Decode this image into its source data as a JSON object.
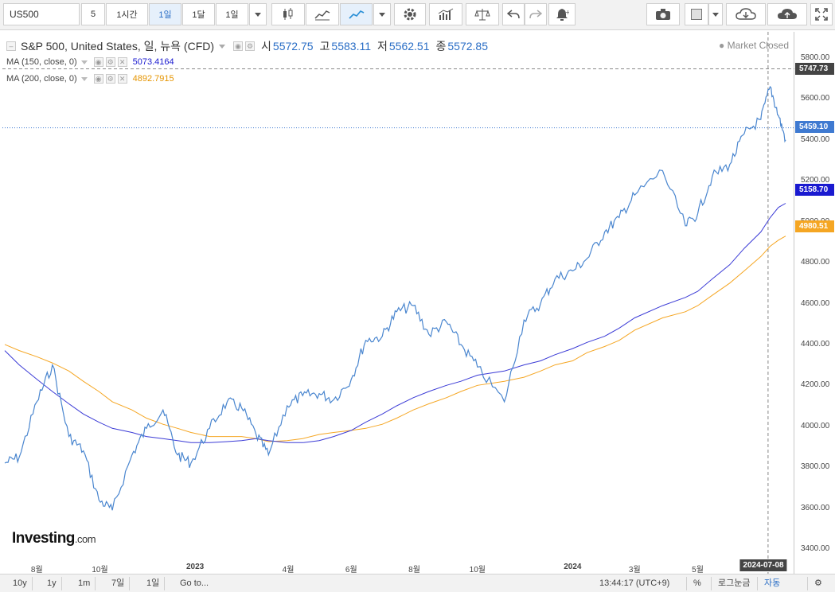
{
  "toolbar": {
    "symbol": "US500",
    "intervals": [
      "5",
      "1시간",
      "1일",
      "1달",
      "1일"
    ],
    "active_interval_index": 2,
    "icons": [
      "candlestick-icon",
      "bar-chart-icon",
      "line-chart-icon",
      "settings-icon",
      "indicators-icon",
      "compare-icon",
      "undo-icon",
      "redo-icon",
      "alert-icon",
      "camera-icon",
      "color-icon",
      "cloud-save-icon",
      "cloud-load-icon",
      "fullscreen-icon"
    ]
  },
  "legend": {
    "title": "S&P 500, United States, 일, 뉴욕 (CFD)",
    "open_label": "시",
    "open": "5572.75",
    "high_label": "고",
    "high": "5583.11",
    "low_label": "저",
    "low": "5562.51",
    "close_label": "종",
    "close": "5572.85",
    "market_status": "Market Closed",
    "ma150_label": "MA (150, close, 0)",
    "ma150_value": "5073.4164",
    "ma200_label": "MA (200, close, 0)",
    "ma200_value": "4892.7915"
  },
  "axis": {
    "price_ticks": [
      "5800.00",
      "5600.00",
      "5400.00",
      "5200.00",
      "5000.00",
      "4800.00",
      "4600.00",
      "4400.00",
      "4200.00",
      "4000.00",
      "3800.00",
      "3600.00",
      "3400.00"
    ],
    "time_ticks": [
      "8월",
      "10월",
      "2023",
      "4월",
      "6월",
      "8월",
      "10월",
      "2024",
      "3월",
      "5월"
    ],
    "crosshair_price": "5747.73",
    "crosshair_date": "2024-07-08",
    "last_price": "5459.10",
    "ma150_tag": "5158.70",
    "ma200_tag": "4980.51"
  },
  "colors": {
    "price_line": "#4a86cf",
    "ma150": "#3b3bd6",
    "ma200": "#f5a623",
    "last_price_tag": "#3f7ad1",
    "ma150_tag": "#1a1ad0",
    "ma200_tag": "#f5a623",
    "crosshair_tag": "#444444"
  },
  "chart_data": {
    "type": "line",
    "ylim": [
      3400,
      5800
    ],
    "x": [
      "2022-07-01",
      "2022-07-15",
      "2022-08-01",
      "2022-08-16",
      "2022-09-01",
      "2022-09-15",
      "2022-09-30",
      "2022-10-13",
      "2022-11-01",
      "2022-11-15",
      "2022-12-01",
      "2022-12-15",
      "2022-12-28",
      "2023-01-15",
      "2023-02-01",
      "2023-02-15",
      "2023-03-01",
      "2023-03-13",
      "2023-03-31",
      "2023-04-15",
      "2023-05-01",
      "2023-05-15",
      "2023-06-01",
      "2023-06-15",
      "2023-07-01",
      "2023-07-15",
      "2023-07-31",
      "2023-08-15",
      "2023-09-01",
      "2023-09-15",
      "2023-10-01",
      "2023-10-27",
      "2023-11-15",
      "2023-12-01",
      "2023-12-15",
      "2024-01-01",
      "2024-01-15",
      "2024-02-01",
      "2024-02-15",
      "2024-03-01",
      "2024-03-28",
      "2024-04-19",
      "2024-05-01",
      "2024-05-15",
      "2024-06-01",
      "2024-06-15",
      "2024-07-01",
      "2024-07-10",
      "2024-07-18",
      "2024-07-25"
    ],
    "series": [
      {
        "name": "S&P 500",
        "values": [
          3820,
          3850,
          4120,
          4300,
          3950,
          3880,
          3640,
          3590,
          3860,
          3990,
          4080,
          3860,
          3820,
          3990,
          4120,
          4090,
          3960,
          3860,
          4100,
          4150,
          4160,
          4130,
          4230,
          4420,
          4440,
          4560,
          4590,
          4450,
          4510,
          4400,
          4290,
          4120,
          4520,
          4600,
          4720,
          4760,
          4820,
          4950,
          5020,
          5130,
          5250,
          4980,
          5040,
          5220,
          5280,
          5430,
          5500,
          5660,
          5520,
          5400
        ]
      },
      {
        "name": "MA (150, close, 0)",
        "values": [
          4370,
          4300,
          4230,
          4170,
          4110,
          4060,
          4020,
          3990,
          3970,
          3950,
          3940,
          3930,
          3920,
          3920,
          3925,
          3930,
          3940,
          3930,
          3920,
          3920,
          3930,
          3950,
          3980,
          4020,
          4060,
          4100,
          4140,
          4170,
          4200,
          4220,
          4250,
          4270,
          4300,
          4320,
          4350,
          4380,
          4410,
          4440,
          4480,
          4530,
          4590,
          4630,
          4660,
          4720,
          4790,
          4870,
          4950,
          5020,
          5070,
          5090
        ]
      },
      {
        "name": "MA (200, close, 0)",
        "values": [
          4400,
          4370,
          4340,
          4310,
          4270,
          4220,
          4170,
          4120,
          4080,
          4040,
          4010,
          3990,
          3970,
          3950,
          3950,
          3950,
          3940,
          3925,
          3930,
          3940,
          3960,
          3970,
          3980,
          3990,
          4010,
          4040,
          4080,
          4110,
          4140,
          4170,
          4200,
          4220,
          4240,
          4270,
          4300,
          4320,
          4360,
          4390,
          4420,
          4470,
          4530,
          4560,
          4590,
          4640,
          4700,
          4760,
          4830,
          4880,
          4910,
          4930
        ]
      }
    ]
  },
  "bottom": {
    "ranges": [
      "10y",
      "1y",
      "1m",
      "7일",
      "1일"
    ],
    "goto": "Go to...",
    "clock": "13:44:17 (UTC+9)",
    "percent": "%",
    "log": "로그눈금",
    "auto": "자동"
  }
}
